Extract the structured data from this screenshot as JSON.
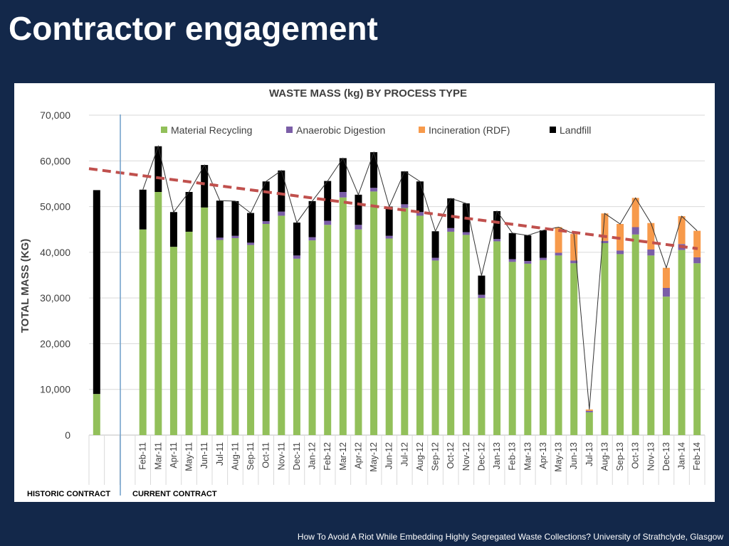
{
  "slide": {
    "title": "Contractor engagement",
    "footer": "How To Avoid A Riot While Embedding Highly Segregated Waste Collections? University of Strathclyde, Glasgow"
  },
  "chart_data": {
    "type": "bar",
    "stacked": true,
    "title": "WASTE MASS (kg) BY PROCESS TYPE",
    "xlabel": "",
    "ylabel": "TOTAL MASS (KG)",
    "ylim": [
      0,
      70000
    ],
    "yticks": [
      0,
      10000,
      20000,
      30000,
      40000,
      50000,
      60000,
      70000
    ],
    "ytick_labels": [
      "0",
      "10,000",
      "20,000",
      "30,000",
      "40,000",
      "50,000",
      "60,000",
      "70,000"
    ],
    "grid": true,
    "legend_position": "top",
    "groups": [
      {
        "label": "HISTORIC CONTRACT"
      },
      {
        "label": "CURRENT CONTRACT"
      }
    ],
    "categories": [
      "",
      "",
      "",
      "Feb-11",
      "Mar-11",
      "Apr-11",
      "May-11",
      "Jun-11",
      "Jul-11",
      "Aug-11",
      "Sep-11",
      "Oct-11",
      "Nov-11",
      "Dec-11",
      "Jan-12",
      "Feb-12",
      "Mar-12",
      "Apr-12",
      "May-12",
      "Jun-12",
      "Jul-12",
      "Aug-12",
      "Sep-12",
      "Oct-12",
      "Nov-12",
      "Dec-12",
      "Jan-13",
      "Feb-13",
      "Mar-13",
      "Apr-13",
      "May-13",
      "Jun-13",
      "Jul-13",
      "Aug-13",
      "Sep-13",
      "Oct-13",
      "Nov-13",
      "Dec-13",
      "Jan-14",
      "Feb-14"
    ],
    "series": [
      {
        "name": "Material Recycling",
        "color": "#92c05a",
        "values": [
          9000,
          null,
          null,
          45000,
          53200,
          41200,
          44500,
          49800,
          42700,
          43100,
          41600,
          46200,
          48000,
          38600,
          42600,
          46000,
          52000,
          45000,
          53300,
          43000,
          49700,
          48000,
          38200,
          44500,
          43800,
          30000,
          42400,
          37900,
          37500,
          38300,
          39300,
          37600,
          5000,
          42000,
          39600,
          43900,
          39300,
          30300,
          40500,
          37600
        ]
      },
      {
        "name": "Anaerobic Digestion",
        "color": "#7b5ea7",
        "values": [
          0,
          null,
          null,
          0,
          0,
          0,
          0,
          0,
          500,
          500,
          500,
          600,
          900,
          700,
          700,
          900,
          1200,
          1000,
          800,
          600,
          800,
          800,
          600,
          800,
          600,
          700,
          500,
          600,
          600,
          500,
          600,
          600,
          300,
          500,
          800,
          1600,
          1300,
          1900,
          1300,
          1300
        ]
      },
      {
        "name": "Incineration (RDF)",
        "color": "#f79a4b",
        "values": [
          0,
          null,
          null,
          0,
          0,
          0,
          0,
          0,
          0,
          0,
          0,
          0,
          0,
          0,
          0,
          0,
          0,
          0,
          0,
          0,
          0,
          0,
          0,
          0,
          0,
          0,
          0,
          0,
          0,
          0,
          5600,
          5800,
          300,
          6000,
          5800,
          6400,
          5800,
          4400,
          6100,
          5800
        ]
      },
      {
        "name": "Landfill",
        "color": "#000000",
        "values": [
          44600,
          null,
          null,
          8700,
          10000,
          7600,
          8700,
          9300,
          8100,
          7600,
          6500,
          8700,
          9000,
          7200,
          7900,
          8700,
          7400,
          6600,
          7800,
          6400,
          7200,
          6700,
          5800,
          6500,
          6300,
          4200,
          6100,
          5700,
          5600,
          6000,
          0,
          0,
          0,
          0,
          0,
          0,
          0,
          0,
          0,
          0
        ]
      }
    ],
    "total_line": {
      "color": "#333333"
    },
    "trendline": {
      "color": "#c0504d",
      "style": "dashed",
      "start": 58300,
      "end": 40800
    }
  }
}
